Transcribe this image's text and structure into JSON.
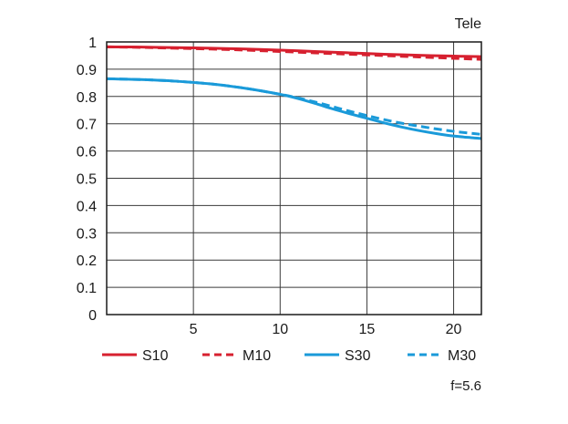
{
  "chart_data": {
    "type": "line",
    "title": "Tele",
    "note": "f=5.6",
    "xlabel": "",
    "ylabel": "",
    "xlim": [
      0,
      21.6
    ],
    "ylim": [
      0,
      1
    ],
    "x_ticks": [
      5,
      10,
      15,
      20
    ],
    "y_ticks": [
      0,
      0.1,
      0.2,
      0.3,
      0.4,
      0.5,
      0.6,
      0.7,
      0.8,
      0.9,
      1
    ],
    "y_tick_labels": [
      "0",
      "0.1",
      "0.2",
      "0.3",
      "0.4",
      "0.5",
      "0.6",
      "0.7",
      "0.8",
      "0.9",
      "1"
    ],
    "grid": true,
    "legend_position": "bottom",
    "series": [
      {
        "name": "S10",
        "color": "#d7202f",
        "style": "solid",
        "points": [
          [
            0,
            0.982
          ],
          [
            2,
            0.981
          ],
          [
            4,
            0.979
          ],
          [
            6,
            0.977
          ],
          [
            8,
            0.974
          ],
          [
            10,
            0.97
          ],
          [
            12,
            0.965
          ],
          [
            14,
            0.96
          ],
          [
            16,
            0.955
          ],
          [
            18,
            0.951
          ],
          [
            20,
            0.948
          ],
          [
            21.6,
            0.946
          ]
        ]
      },
      {
        "name": "M10",
        "color": "#d7202f",
        "style": "dashed",
        "points": [
          [
            0,
            0.982
          ],
          [
            2,
            0.98
          ],
          [
            4,
            0.977
          ],
          [
            6,
            0.974
          ],
          [
            8,
            0.97
          ],
          [
            10,
            0.965
          ],
          [
            12,
            0.96
          ],
          [
            14,
            0.955
          ],
          [
            16,
            0.95
          ],
          [
            18,
            0.945
          ],
          [
            20,
            0.94
          ],
          [
            21.6,
            0.936
          ]
        ]
      },
      {
        "name": "S30",
        "color": "#1a9ad9",
        "style": "solid",
        "points": [
          [
            0,
            0.865
          ],
          [
            2,
            0.862
          ],
          [
            4,
            0.856
          ],
          [
            6,
            0.846
          ],
          [
            8,
            0.83
          ],
          [
            10,
            0.808
          ],
          [
            11,
            0.793
          ],
          [
            12,
            0.775
          ],
          [
            13,
            0.755
          ],
          [
            14,
            0.737
          ],
          [
            15,
            0.72
          ],
          [
            16,
            0.703
          ],
          [
            17,
            0.688
          ],
          [
            18,
            0.675
          ],
          [
            19,
            0.664
          ],
          [
            20,
            0.655
          ],
          [
            21,
            0.649
          ],
          [
            21.6,
            0.646
          ]
        ]
      },
      {
        "name": "M30",
        "color": "#1a9ad9",
        "style": "dashed",
        "points": [
          [
            0,
            0.865
          ],
          [
            2,
            0.862
          ],
          [
            4,
            0.856
          ],
          [
            6,
            0.846
          ],
          [
            8,
            0.83
          ],
          [
            10,
            0.808
          ],
          [
            11,
            0.795
          ],
          [
            12,
            0.78
          ],
          [
            13,
            0.763
          ],
          [
            14,
            0.746
          ],
          [
            15,
            0.73
          ],
          [
            16,
            0.715
          ],
          [
            17,
            0.702
          ],
          [
            18,
            0.691
          ],
          [
            19,
            0.681
          ],
          [
            20,
            0.672
          ],
          [
            21,
            0.665
          ],
          [
            21.6,
            0.661
          ]
        ]
      }
    ]
  }
}
